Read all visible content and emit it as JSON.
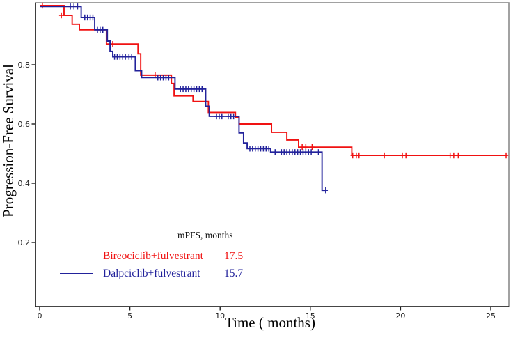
{
  "figure": {
    "x_axis_title": "Time ( months)",
    "y_axis_title": "Progression-Free Survival"
  },
  "legend": {
    "header": "mPFS, months",
    "items": [
      {
        "label": "Bireociclib+fulvestrant",
        "value": "17.5",
        "color": "#f01212"
      },
      {
        "label": "Dalpciclib+fulvestrant",
        "value": "15.7",
        "color": "#22229b"
      }
    ]
  },
  "chart_data": {
    "type": "line",
    "subtype": "kaplan-meier-step-with-censor-marks",
    "title": "",
    "xlabel": "Time ( months)",
    "ylabel": "Progression-Free Survival",
    "xlim": [
      0,
      26.3
    ],
    "ylim": [
      0.02,
      1.02
    ],
    "x_ticks": [
      0,
      5,
      10,
      15,
      20,
      25
    ],
    "y_ticks": [
      0.2,
      0.4,
      0.6,
      0.8
    ],
    "grid": false,
    "legend_position": "bottom-left-inside",
    "box_color": "#8a8a8a",
    "axis_color": "#1f1f1f",
    "series": [
      {
        "name": "Bireociclib+fulvestrant",
        "color": "#f01212",
        "median_pfs_months": 17.5,
        "end_t": 25.9,
        "steps": [
          [
            0,
            1.0
          ],
          [
            1.35,
            0.967
          ],
          [
            1.8,
            0.937
          ],
          [
            2.2,
            0.918
          ],
          [
            3.7,
            0.87
          ],
          [
            5.45,
            0.837
          ],
          [
            5.6,
            0.765
          ],
          [
            7.3,
            0.737
          ],
          [
            7.45,
            0.695
          ],
          [
            8.5,
            0.676
          ],
          [
            9.35,
            0.639
          ],
          [
            10.85,
            0.623
          ],
          [
            11.05,
            0.6
          ],
          [
            12.85,
            0.572
          ],
          [
            13.7,
            0.546
          ],
          [
            14.35,
            0.522
          ],
          [
            17.3,
            0.494
          ]
        ],
        "censors": [
          [
            0.15,
            1.0
          ],
          [
            1.2,
            0.967
          ],
          [
            4.05,
            0.87
          ],
          [
            6.4,
            0.765
          ],
          [
            14.55,
            0.522
          ],
          [
            14.75,
            0.522
          ],
          [
            15.1,
            0.522
          ],
          [
            17.35,
            0.494
          ],
          [
            17.55,
            0.494
          ],
          [
            17.7,
            0.494
          ],
          [
            19.1,
            0.494
          ],
          [
            20.1,
            0.494
          ],
          [
            20.3,
            0.494
          ],
          [
            22.75,
            0.494
          ],
          [
            22.95,
            0.494
          ],
          [
            23.2,
            0.494
          ],
          [
            25.85,
            0.494
          ]
        ]
      },
      {
        "name": "Dalpciclib+fulvestrant",
        "color": "#22229b",
        "median_pfs_months": 15.7,
        "end_t": 15.9,
        "steps": [
          [
            0,
            0.997
          ],
          [
            2.3,
            0.96
          ],
          [
            3.05,
            0.918
          ],
          [
            3.75,
            0.88
          ],
          [
            3.9,
            0.845
          ],
          [
            4.05,
            0.827
          ],
          [
            5.3,
            0.78
          ],
          [
            5.65,
            0.757
          ],
          [
            7.5,
            0.718
          ],
          [
            9.2,
            0.66
          ],
          [
            9.4,
            0.626
          ],
          [
            11.05,
            0.57
          ],
          [
            11.3,
            0.536
          ],
          [
            11.5,
            0.517
          ],
          [
            12.8,
            0.505
          ],
          [
            15.65,
            0.376
          ]
        ],
        "censors": [
          [
            1.7,
            0.997
          ],
          [
            1.9,
            0.997
          ],
          [
            2.1,
            0.997
          ],
          [
            2.5,
            0.96
          ],
          [
            2.65,
            0.96
          ],
          [
            2.8,
            0.96
          ],
          [
            2.95,
            0.96
          ],
          [
            3.2,
            0.918
          ],
          [
            3.35,
            0.918
          ],
          [
            3.5,
            0.918
          ],
          [
            4.15,
            0.827
          ],
          [
            4.3,
            0.827
          ],
          [
            4.45,
            0.827
          ],
          [
            4.6,
            0.827
          ],
          [
            4.75,
            0.827
          ],
          [
            4.95,
            0.827
          ],
          [
            5.1,
            0.827
          ],
          [
            6.55,
            0.757
          ],
          [
            6.7,
            0.757
          ],
          [
            6.85,
            0.757
          ],
          [
            7.0,
            0.757
          ],
          [
            7.15,
            0.757
          ],
          [
            7.8,
            0.718
          ],
          [
            7.95,
            0.718
          ],
          [
            8.1,
            0.718
          ],
          [
            8.25,
            0.718
          ],
          [
            8.4,
            0.718
          ],
          [
            8.55,
            0.718
          ],
          [
            8.7,
            0.718
          ],
          [
            8.85,
            0.718
          ],
          [
            9.0,
            0.718
          ],
          [
            9.8,
            0.626
          ],
          [
            9.95,
            0.626
          ],
          [
            10.1,
            0.626
          ],
          [
            10.45,
            0.626
          ],
          [
            10.6,
            0.626
          ],
          [
            10.75,
            0.626
          ],
          [
            11.65,
            0.517
          ],
          [
            11.8,
            0.517
          ],
          [
            11.95,
            0.517
          ],
          [
            12.1,
            0.517
          ],
          [
            12.25,
            0.517
          ],
          [
            12.4,
            0.517
          ],
          [
            12.55,
            0.517
          ],
          [
            12.7,
            0.517
          ],
          [
            13.05,
            0.505
          ],
          [
            13.4,
            0.505
          ],
          [
            13.55,
            0.505
          ],
          [
            13.7,
            0.505
          ],
          [
            13.85,
            0.505
          ],
          [
            14.0,
            0.505
          ],
          [
            14.15,
            0.505
          ],
          [
            14.3,
            0.505
          ],
          [
            14.45,
            0.505
          ],
          [
            14.6,
            0.505
          ],
          [
            14.75,
            0.505
          ],
          [
            14.9,
            0.505
          ],
          [
            15.05,
            0.505
          ],
          [
            15.45,
            0.505
          ],
          [
            15.85,
            0.376
          ]
        ]
      }
    ]
  }
}
